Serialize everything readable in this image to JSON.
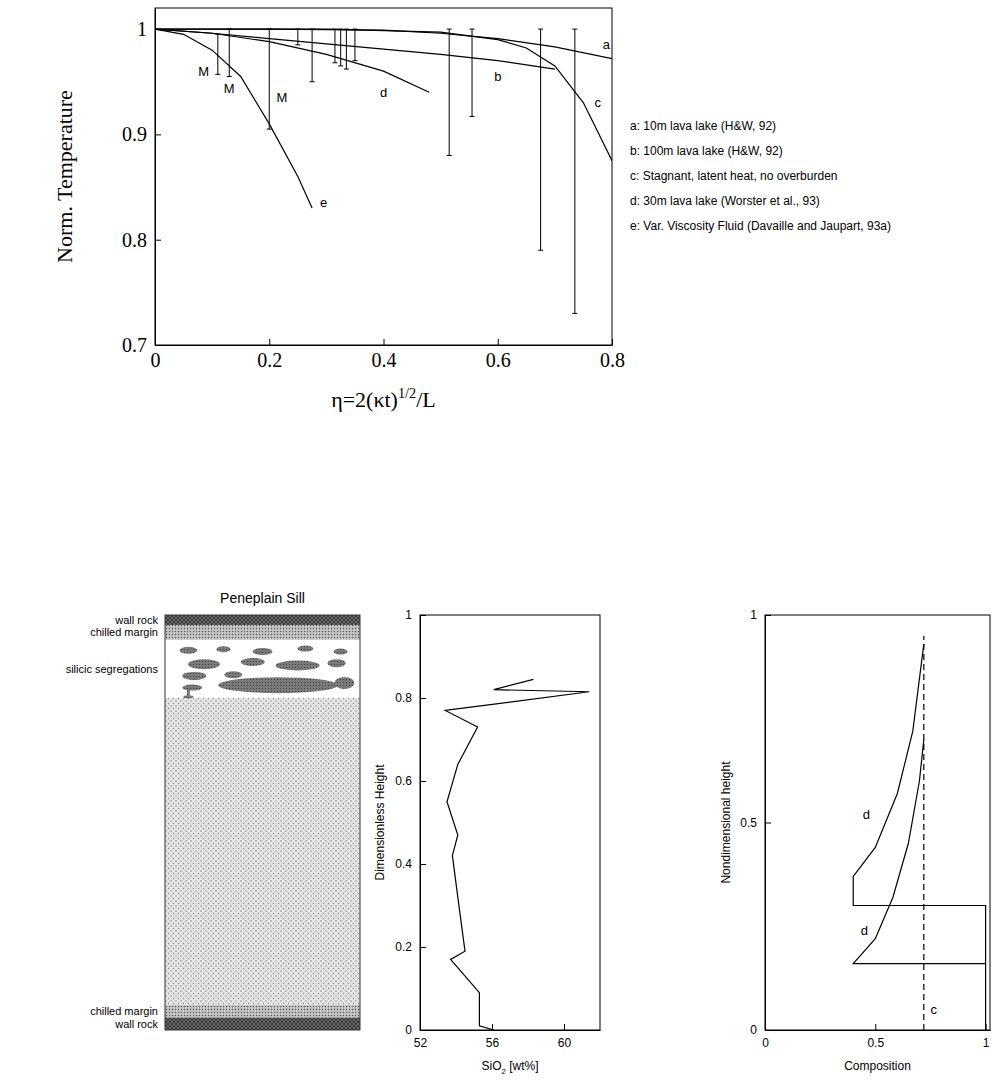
{
  "chart_data": [
    {
      "type": "line",
      "xlabel": [
        "η=2(κt)",
        "1/2",
        "/L"
      ],
      "ylabel": "Norm. Temperature",
      "xlim": [
        0,
        0.8
      ],
      "ylim": [
        0.7,
        1.02
      ],
      "xticks": [
        0,
        0.2,
        0.4,
        0.6,
        0.8
      ],
      "yticks": [
        0.7,
        0.8,
        0.9,
        1
      ],
      "legend": "right",
      "series": [
        {
          "name": "a: 10m lava lake (H&W, 92)",
          "color": "#000000",
          "line_style": "solid",
          "x": [
            0,
            0.2,
            0.4,
            0.5,
            0.6,
            0.7,
            0.8
          ],
          "values": [
            1,
            1,
            0.999,
            0.996,
            0.991,
            0.983,
            0.972
          ]
        },
        {
          "name": "b: 100m lava lake (H&W, 92)",
          "color": "#000000",
          "line_style": "solid",
          "x": [
            0,
            0.1,
            0.2,
            0.3,
            0.4,
            0.5,
            0.6,
            0.7
          ],
          "values": [
            1,
            0.996,
            0.991,
            0.986,
            0.981,
            0.976,
            0.97,
            0.962
          ]
        },
        {
          "name": "c: Stagnant, latent heat, no overburden",
          "color": "#000000",
          "line_style": "solid",
          "x": [
            0,
            0.3,
            0.5,
            0.6,
            0.65,
            0.7,
            0.75,
            0.8
          ],
          "values": [
            1,
            1,
            0.997,
            0.99,
            0.982,
            0.965,
            0.93,
            0.875
          ]
        },
        {
          "name": "d: 30m lava lake (Worster et al., 93)",
          "color": "#000000",
          "line_style": "solid",
          "x": [
            0,
            0.1,
            0.2,
            0.3,
            0.4,
            0.48
          ],
          "values": [
            1,
            0.996,
            0.988,
            0.976,
            0.96,
            0.94
          ]
        },
        {
          "name": "e: Var. Viscosity Fluid (Davaille and Jaupart, 93a)",
          "color": "#000000",
          "line_style": "solid",
          "x": [
            0,
            0.05,
            0.1,
            0.15,
            0.2,
            0.25,
            0.275
          ],
          "values": [
            1,
            0.995,
            0.98,
            0.955,
            0.91,
            0.86,
            0.83
          ]
        }
      ],
      "error_bars": {
        "color": "#000000",
        "x": [
          0.11,
          0.13,
          0.2,
          0.25,
          0.275,
          0.315,
          0.325,
          0.335,
          0.35,
          0.515,
          0.555,
          0.675,
          0.735
        ],
        "low": [
          0.957,
          0.955,
          0.905,
          0.985,
          0.95,
          0.968,
          0.965,
          0.962,
          0.97,
          0.88,
          0.917,
          0.79,
          0.73
        ],
        "high": [
          0.995,
          1,
          1,
          1,
          1,
          1,
          1,
          1,
          1,
          1,
          1,
          1,
          1
        ]
      },
      "annotations": [
        {
          "text": "a",
          "x": 0.79,
          "y": 0.985
        },
        {
          "text": "b",
          "x": 0.6,
          "y": 0.955
        },
        {
          "text": "c",
          "x": 0.775,
          "y": 0.93
        },
        {
          "text": "d",
          "x": 0.4,
          "y": 0.94
        },
        {
          "text": "e",
          "x": 0.295,
          "y": 0.835
        },
        {
          "text": "M",
          "x": 0.085,
          "y": 0.96
        },
        {
          "text": "M",
          "x": 0.13,
          "y": 0.944
        },
        {
          "text": "M",
          "x": 0.222,
          "y": 0.935
        }
      ]
    },
    {
      "type": "diagram",
      "title": "Peneplain Sill",
      "layers": [
        "wall rock",
        "chilled margin",
        "silicic segregations",
        "chilled margin",
        "wall rock"
      ]
    },
    {
      "type": "line",
      "xlabel": [
        "SiO",
        "2",
        " [wt%]"
      ],
      "ylabel": "Dimensionless Height",
      "xlim": [
        52,
        62
      ],
      "ylim": [
        0,
        1
      ],
      "xticks": [
        52,
        56,
        60
      ],
      "yticks": [
        0,
        0.2,
        0.4,
        0.6,
        0.8,
        1
      ],
      "series": [
        {
          "color": "#000000",
          "line_style": "solid",
          "x": [
            56.1,
            55.3,
            55.3,
            53.7,
            54.5,
            54.1,
            53.8,
            54.1,
            53.5,
            54.1,
            55.2,
            53.4,
            61.4,
            56.1,
            58.3
          ],
          "values": [
            0,
            0.01,
            0.09,
            0.17,
            0.19,
            0.32,
            0.42,
            0.47,
            0.55,
            0.64,
            0.73,
            0.77,
            0.815,
            0.82,
            0.845
          ]
        }
      ]
    },
    {
      "type": "line",
      "xlabel": "Composition",
      "ylabel": "Nondimensional height",
      "xlim": [
        0,
        1.02
      ],
      "ylim": [
        0,
        1
      ],
      "xticks": [
        0,
        0.5,
        1
      ],
      "yticks": [
        0,
        0.5,
        1
      ],
      "series": [
        {
          "color": "#000000",
          "line_style": "solid",
          "x": [
            1,
            1,
            0.4,
            0.5,
            0.58,
            0.65,
            0.7,
            0.72
          ],
          "values": [
            0,
            0.16,
            0.16,
            0.22,
            0.32,
            0.45,
            0.6,
            0.7
          ]
        },
        {
          "color": "#000000",
          "line_style": "solid",
          "x": [
            1,
            1,
            0.4,
            0.4,
            0.5,
            0.6,
            0.67,
            0.72
          ],
          "values": [
            0.16,
            0.3,
            0.3,
            0.37,
            0.44,
            0.57,
            0.72,
            0.93
          ]
        },
        {
          "color": "#000000",
          "line_style": "dashed",
          "x": [
            0.72,
            0.72
          ],
          "values": [
            0,
            0.95
          ]
        }
      ],
      "annotations": [
        {
          "text": "d",
          "x": 0.45,
          "y": 0.24
        },
        {
          "text": "d",
          "x": 0.46,
          "y": 0.52
        },
        {
          "text": "c",
          "x": 0.765,
          "y": 0.05
        }
      ]
    }
  ]
}
